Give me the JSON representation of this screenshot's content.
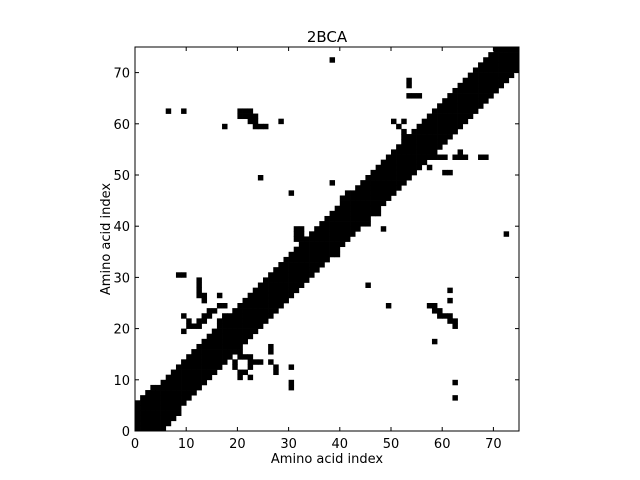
{
  "chart_data": {
    "type": "heatmap",
    "title": "2BCA",
    "xlabel": "Amino acid index",
    "ylabel": "Amino acid index",
    "xlim": [
      0,
      75
    ],
    "ylim": [
      0,
      75
    ],
    "xticks": [
      "0",
      "10",
      "20",
      "30",
      "40",
      "50",
      "60",
      "70"
    ],
    "yticks": [
      "0",
      "10",
      "20",
      "30",
      "40",
      "50",
      "60",
      "70"
    ],
    "grid": false,
    "legend": "none",
    "cell_color": "#000000",
    "background_color": "#ffffff",
    "diagonal_band": [
      {
        "x": 0,
        "y_from": 0,
        "y_to": 6
      },
      {
        "x": 2,
        "y_from": 0,
        "y_to": 8
      },
      {
        "x": 5,
        "y_from": 1,
        "y_to": 10
      },
      {
        "x": 10,
        "y_from": 6,
        "y_to": 15
      },
      {
        "x": 15,
        "y_from": 11,
        "y_to": 20
      },
      {
        "x": 20,
        "y_from": 17,
        "y_to": 25
      },
      {
        "x": 25,
        "y_from": 22,
        "y_to": 30
      },
      {
        "x": 30,
        "y_from": 26,
        "y_to": 35
      },
      {
        "x": 35,
        "y_from": 32,
        "y_to": 40
      },
      {
        "x": 40,
        "y_from": 37,
        "y_to": 45
      },
      {
        "x": 45,
        "y_from": 42,
        "y_to": 50
      },
      {
        "x": 50,
        "y_from": 47,
        "y_to": 55
      },
      {
        "x": 55,
        "y_from": 52,
        "y_to": 60
      },
      {
        "x": 60,
        "y_from": 57,
        "y_to": 65
      },
      {
        "x": 65,
        "y_from": 62,
        "y_to": 70
      },
      {
        "x": 70,
        "y_from": 67,
        "y_to": 75
      },
      {
        "x": 74,
        "y_from": 71,
        "y_to": 75
      }
    ],
    "contact_cells": [
      [
        38,
        72
      ],
      [
        53,
        68
      ],
      [
        53,
        67
      ],
      [
        53,
        65
      ],
      [
        54,
        65
      ],
      [
        55,
        65
      ],
      [
        6,
        62
      ],
      [
        9,
        62
      ],
      [
        20,
        62
      ],
      [
        21,
        62
      ],
      [
        22,
        62
      ],
      [
        20,
        61
      ],
      [
        21,
        61
      ],
      [
        22,
        61
      ],
      [
        22,
        60
      ],
      [
        23,
        60
      ],
      [
        23,
        59
      ],
      [
        24,
        59
      ],
      [
        25,
        59
      ],
      [
        23,
        61
      ],
      [
        17,
        59
      ],
      [
        28,
        60
      ],
      [
        50,
        60
      ],
      [
        52,
        60
      ],
      [
        51,
        59
      ],
      [
        52,
        58
      ],
      [
        52,
        57
      ],
      [
        52,
        56
      ],
      [
        52,
        55
      ],
      [
        54,
        53
      ],
      [
        55,
        53
      ],
      [
        56,
        53
      ],
      [
        57,
        53
      ],
      [
        58,
        53
      ],
      [
        59,
        53
      ],
      [
        60,
        53
      ],
      [
        57,
        54
      ],
      [
        58,
        54
      ],
      [
        62,
        53
      ],
      [
        63,
        54
      ],
      [
        63,
        53
      ],
      [
        64,
        53
      ],
      [
        67,
        53
      ],
      [
        68,
        53
      ],
      [
        56,
        52
      ],
      [
        57,
        51
      ],
      [
        60,
        50
      ],
      [
        61,
        50
      ],
      [
        24,
        49
      ],
      [
        30,
        46
      ],
      [
        38,
        48
      ],
      [
        40,
        45
      ],
      [
        41,
        46
      ],
      [
        42,
        44
      ],
      [
        43,
        43
      ],
      [
        43,
        42
      ],
      [
        44,
        42
      ],
      [
        47,
        42
      ],
      [
        38,
        41
      ],
      [
        39,
        41
      ],
      [
        44,
        40
      ],
      [
        45,
        40
      ],
      [
        48,
        39
      ],
      [
        31,
        39
      ],
      [
        32,
        39
      ],
      [
        31,
        38
      ],
      [
        32,
        38
      ],
      [
        31,
        37
      ],
      [
        32,
        37
      ],
      [
        72,
        38
      ],
      [
        39,
        35
      ],
      [
        39,
        34
      ],
      [
        37,
        33
      ],
      [
        8,
        30
      ],
      [
        9,
        30
      ],
      [
        12,
        29
      ],
      [
        12,
        28
      ],
      [
        12,
        27
      ],
      [
        12,
        26
      ],
      [
        13,
        26
      ],
      [
        13,
        25
      ],
      [
        16,
        26
      ],
      [
        45,
        28
      ],
      [
        49,
        24
      ],
      [
        61,
        27
      ],
      [
        61,
        25
      ],
      [
        57,
        24
      ],
      [
        58,
        24
      ],
      [
        58,
        23
      ],
      [
        59,
        23
      ],
      [
        59,
        22
      ],
      [
        60,
        22
      ],
      [
        61,
        22
      ],
      [
        61,
        21
      ],
      [
        62,
        21
      ],
      [
        62,
        20
      ],
      [
        58,
        17
      ],
      [
        9,
        22
      ],
      [
        10,
        21
      ],
      [
        10,
        20
      ],
      [
        9,
        19
      ],
      [
        11,
        20
      ],
      [
        12,
        20
      ],
      [
        12,
        21
      ],
      [
        13,
        21
      ],
      [
        13,
        22
      ],
      [
        14,
        22
      ],
      [
        14,
        23
      ],
      [
        15,
        23
      ],
      [
        16,
        24
      ],
      [
        17,
        24
      ],
      [
        16,
        21
      ],
      [
        17,
        21
      ],
      [
        18,
        21
      ],
      [
        17,
        22
      ],
      [
        18,
        22
      ],
      [
        19,
        22
      ],
      [
        20,
        22
      ],
      [
        21,
        22
      ],
      [
        16,
        20
      ],
      [
        17,
        20
      ],
      [
        19,
        20
      ],
      [
        20,
        20
      ],
      [
        21,
        20
      ],
      [
        20,
        18
      ],
      [
        20,
        17
      ],
      [
        20,
        16
      ],
      [
        20,
        15
      ],
      [
        20,
        14
      ],
      [
        19,
        13
      ],
      [
        19,
        12
      ],
      [
        20,
        11
      ],
      [
        20,
        10
      ],
      [
        21,
        14
      ],
      [
        22,
        14
      ],
      [
        22,
        13
      ],
      [
        23,
        13
      ],
      [
        24,
        13
      ],
      [
        22,
        12
      ],
      [
        21,
        11
      ],
      [
        22,
        10
      ],
      [
        26,
        13
      ],
      [
        26,
        16
      ],
      [
        26,
        15
      ],
      [
        27,
        12
      ],
      [
        27,
        11
      ],
      [
        30,
        12
      ],
      [
        30,
        9
      ],
      [
        30,
        8
      ],
      [
        11,
        13
      ],
      [
        11,
        14
      ],
      [
        12,
        13
      ],
      [
        62,
        9
      ],
      [
        62,
        6
      ]
    ]
  }
}
